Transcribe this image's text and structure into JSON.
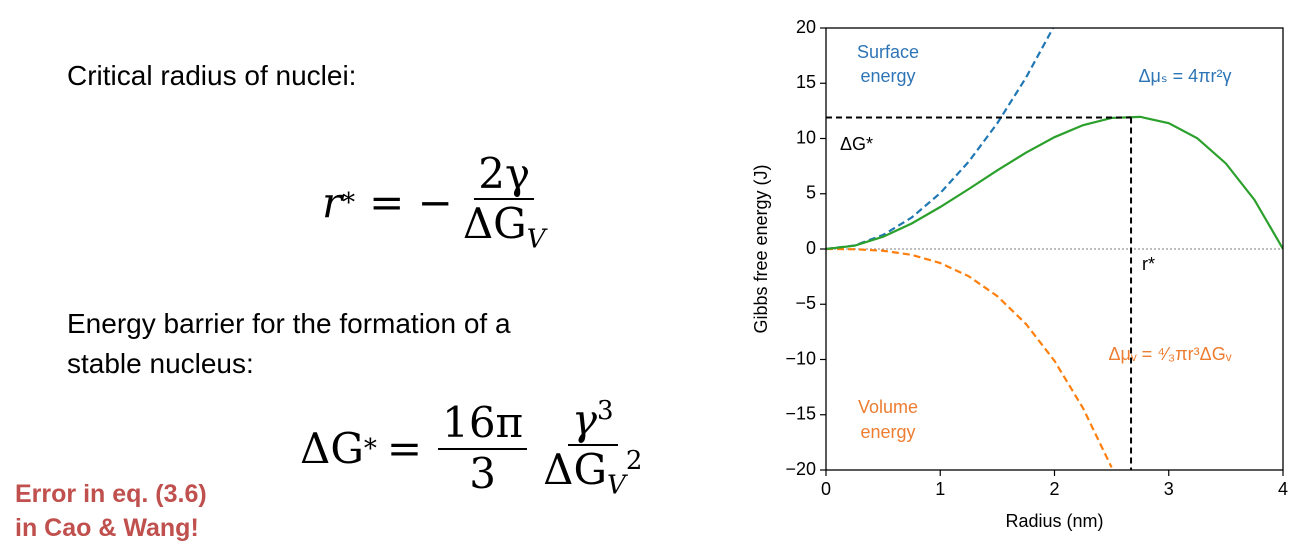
{
  "slide": {
    "heading": "Critical radius of nuclei:",
    "equation1": {
      "lhs": "r",
      "lhs_sup": "*",
      "operator": "= −",
      "numerator": "2γ",
      "denominator_base": "ΔG",
      "denominator_sub": "V"
    },
    "energy_barrier_lines": [
      "Energy barrier for the formation of a",
      "stable nucleus:"
    ],
    "equation2": {
      "lhs": "ΔG",
      "lhs_sup": "*",
      "operator": "=",
      "frac1_num": "16π",
      "frac1_den": "3",
      "frac2_num_base": "γ",
      "frac2_num_sup": "3",
      "frac2_den_base": "ΔG",
      "frac2_den_sub": "V",
      "frac2_den_sup": "2"
    },
    "error_lines": [
      "Error in eq. (3.6)",
      "in Cao & Wang!"
    ]
  },
  "chart_data": {
    "type": "line",
    "x_label": "Radius (nm)",
    "y_label": "Gibbs free energy (J)",
    "x": [
      0,
      0.25,
      0.5,
      0.75,
      1,
      1.25,
      1.5,
      1.75,
      2,
      2.25,
      2.5,
      2.75,
      3,
      3.25,
      3.5,
      3.75,
      4
    ],
    "series": [
      {
        "color": "#1f77b4",
        "dashed": true,
        "values": [
          0,
          0.32,
          1.27,
          2.85,
          5.06,
          7.91,
          11.39,
          15.5,
          20.24,
          null,
          null,
          null,
          null,
          null,
          null,
          null,
          null
        ]
      },
      {
        "color": "#ff7f0e",
        "dashed": true,
        "values": [
          0,
          -0.02,
          -0.16,
          -0.53,
          -1.27,
          -2.47,
          -4.27,
          -6.78,
          -10.12,
          -14.41,
          -19.77,
          null,
          null,
          null,
          null,
          null,
          null
        ]
      },
      {
        "color": "#2ca02c",
        "dashed": false,
        "values": [
          0,
          0.3,
          1.11,
          2.31,
          3.8,
          5.43,
          7.12,
          8.72,
          10.12,
          11.21,
          11.86,
          11.96,
          11.39,
          10.02,
          7.74,
          4.45,
          0
        ]
      }
    ],
    "critical_point": {
      "r": 2.67,
      "g": 11.9
    },
    "xlim": [
      0,
      4
    ],
    "xticks": [
      0,
      1,
      2,
      3,
      4
    ],
    "ylim": [
      -20,
      20
    ],
    "yticks": [
      {
        "value": -20,
        "label": "−20"
      },
      {
        "value": -15,
        "label": "−15"
      },
      {
        "value": -10,
        "label": "−10"
      },
      {
        "value": -5,
        "label": "−5"
      },
      0,
      5,
      10,
      15,
      20
    ],
    "annotations": [
      {
        "text": "Surface",
        "color": "#2e75b6"
      },
      {
        "text": "energy",
        "color": "#2e75b6"
      },
      {
        "text": "Δμₛ = 4πr²γ",
        "color": "#2e75b6"
      },
      {
        "text": "ΔG*",
        "color": "#000000"
      },
      {
        "text": "r*",
        "color": "#000000"
      },
      {
        "text": "Volume",
        "color": "#ed7d31"
      },
      {
        "text": "energy",
        "color": "#ed7d31"
      },
      {
        "text": "Δμᵥ = ⁴⁄₃πr³ΔGᵥ",
        "color": "#ed7d31"
      }
    ]
  }
}
